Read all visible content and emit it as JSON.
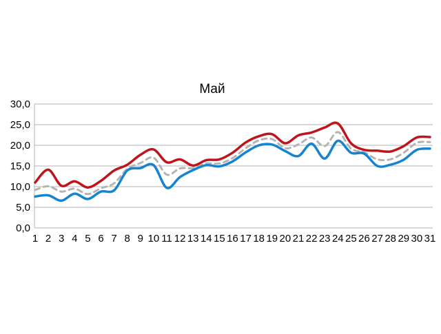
{
  "chart_data": {
    "type": "line",
    "title": "Май",
    "xlabel": "",
    "ylabel": "",
    "x": [
      "1",
      "2",
      "3",
      "4",
      "5",
      "6",
      "7",
      "8",
      "9",
      "10",
      "11",
      "12",
      "13",
      "14",
      "15",
      "16",
      "17",
      "18",
      "19",
      "20",
      "21",
      "22",
      "23",
      "24",
      "25",
      "26",
      "27",
      "28",
      "29",
      "30",
      "31"
    ],
    "ylim": [
      0,
      30
    ],
    "yticks": [
      "0,0",
      "5,0",
      "10,0",
      "15,0",
      "20,0",
      "25,0",
      "30,0"
    ],
    "grid": true,
    "legend": "none",
    "series": [
      {
        "color": "#c0141c",
        "style": "solid",
        "values": [
          11.0,
          14.1,
          10.2,
          11.3,
          9.8,
          11.4,
          13.9,
          15.3,
          17.7,
          19.0,
          15.9,
          16.6,
          15.1,
          16.4,
          16.6,
          18.2,
          20.7,
          22.2,
          22.7,
          20.5,
          22.4,
          23.1,
          24.3,
          25.3,
          20.5,
          18.9,
          18.7,
          18.5,
          19.8,
          21.9,
          22.0
        ]
      },
      {
        "color": "#b4b4b4",
        "style": "dashed",
        "values": [
          9.2,
          10.1,
          8.8,
          9.5,
          8.2,
          9.6,
          10.8,
          14.3,
          15.7,
          17.0,
          12.9,
          14.4,
          14.5,
          15.6,
          15.6,
          16.9,
          19.3,
          21.2,
          21.5,
          19.3,
          20.2,
          21.9,
          19.8,
          23.2,
          19.2,
          18.3,
          16.6,
          16.6,
          18.2,
          20.6,
          20.8
        ]
      },
      {
        "color": "#1484d0",
        "style": "solid",
        "values": [
          7.6,
          7.9,
          6.6,
          8.3,
          7.0,
          8.8,
          9.1,
          13.9,
          14.5,
          15.2,
          9.7,
          12.3,
          14.0,
          15.2,
          14.9,
          16.1,
          18.3,
          20.0,
          20.2,
          18.6,
          17.4,
          20.4,
          16.8,
          21.1,
          18.2,
          18.0,
          15.0,
          15.3,
          16.5,
          18.9,
          19.2
        ]
      }
    ]
  }
}
